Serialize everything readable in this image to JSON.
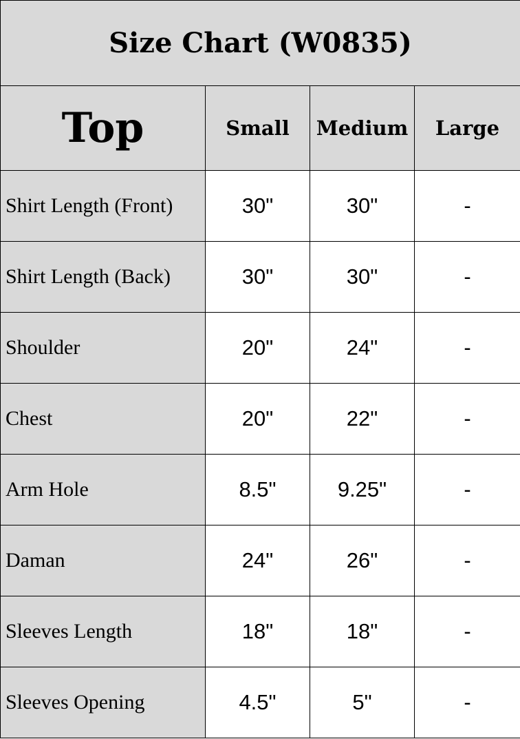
{
  "title": "Size Chart (W0835)",
  "header": {
    "section": "Top",
    "sizes": [
      "Small",
      "Medium",
      "Large"
    ]
  },
  "rows": [
    {
      "label": "Shirt Length (Front)",
      "values": [
        "30\"",
        "30\"",
        "-"
      ]
    },
    {
      "label": "Shirt Length (Back)",
      "values": [
        "30\"",
        "30\"",
        "-"
      ]
    },
    {
      "label": "Shoulder",
      "values": [
        "20\"",
        "24\"",
        "-"
      ]
    },
    {
      "label": "Chest",
      "values": [
        "20\"",
        "22\"",
        "-"
      ]
    },
    {
      "label": "Arm Hole",
      "values": [
        "8.5\"",
        "9.25\"",
        "-"
      ]
    },
    {
      "label": "Daman",
      "values": [
        "24\"",
        "26\"",
        "-"
      ]
    },
    {
      "label": "Sleeves Length",
      "values": [
        "18\"",
        "18\"",
        "-"
      ]
    },
    {
      "label": "Sleeves Opening",
      "values": [
        "4.5\"",
        "5\"",
        "-"
      ]
    }
  ]
}
